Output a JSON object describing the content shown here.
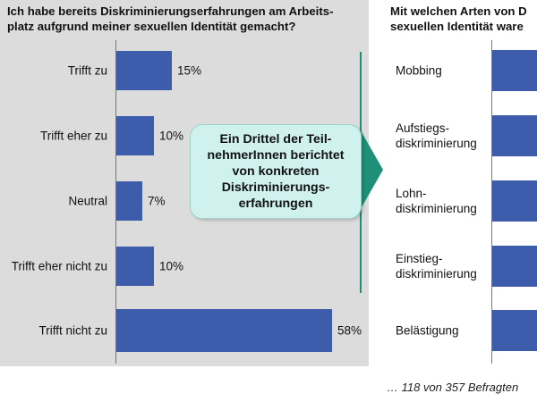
{
  "left_title": "Ich habe bereits Diskriminierungserfahrungen am Arbeits-\nplatz aufgrund meiner sexuellen Identität gemacht?",
  "right_title": "Mit welchen Arten von D\nsexuellen Identität ware",
  "callout_text": "Ein Drittel der Teil-\nnehmerInnen berichtet\nvon konkreten\nDiskriminierungs-\nerfahrungen",
  "footnote": "… 118 von 357 Befragten",
  "colors": {
    "bar": "#3d5cab",
    "callout_bg": "#cff2ee",
    "accent_teal": "#1e9078",
    "panel_bg": "#dcdcdc"
  },
  "chart_data": [
    {
      "type": "bar",
      "orientation": "horizontal",
      "title": "Ich habe bereits Diskriminierungserfahrungen am Arbeits-\nplatz aufgrund meiner sexuellen Identität gemacht?",
      "categories": [
        "Trifft zu",
        "Trifft eher zu",
        "Neutral",
        "Trifft eher nicht zu",
        "Trifft nicht zu"
      ],
      "values": [
        15,
        10,
        7,
        10,
        58
      ],
      "value_labels": [
        "15%",
        "10%",
        "7%",
        "10%",
        "58%"
      ],
      "unit": "%",
      "xlim": [
        0,
        58
      ],
      "grid": false,
      "legend": "none"
    },
    {
      "type": "bar",
      "orientation": "horizontal",
      "title": "Mit welchen Arten von D\nsexuellen Identität ware",
      "categories": [
        "Mobbing",
        "Aufstiegs-\ndiskriminierung",
        "Lohn-\ndiskriminierung",
        "Einstieg-\ndiskriminierung",
        "Belästigung"
      ],
      "values": [
        null,
        null,
        null,
        null,
        null
      ],
      "note": "bars cropped at the right edge of the image; values not visible",
      "grid": false,
      "legend": "none"
    }
  ]
}
